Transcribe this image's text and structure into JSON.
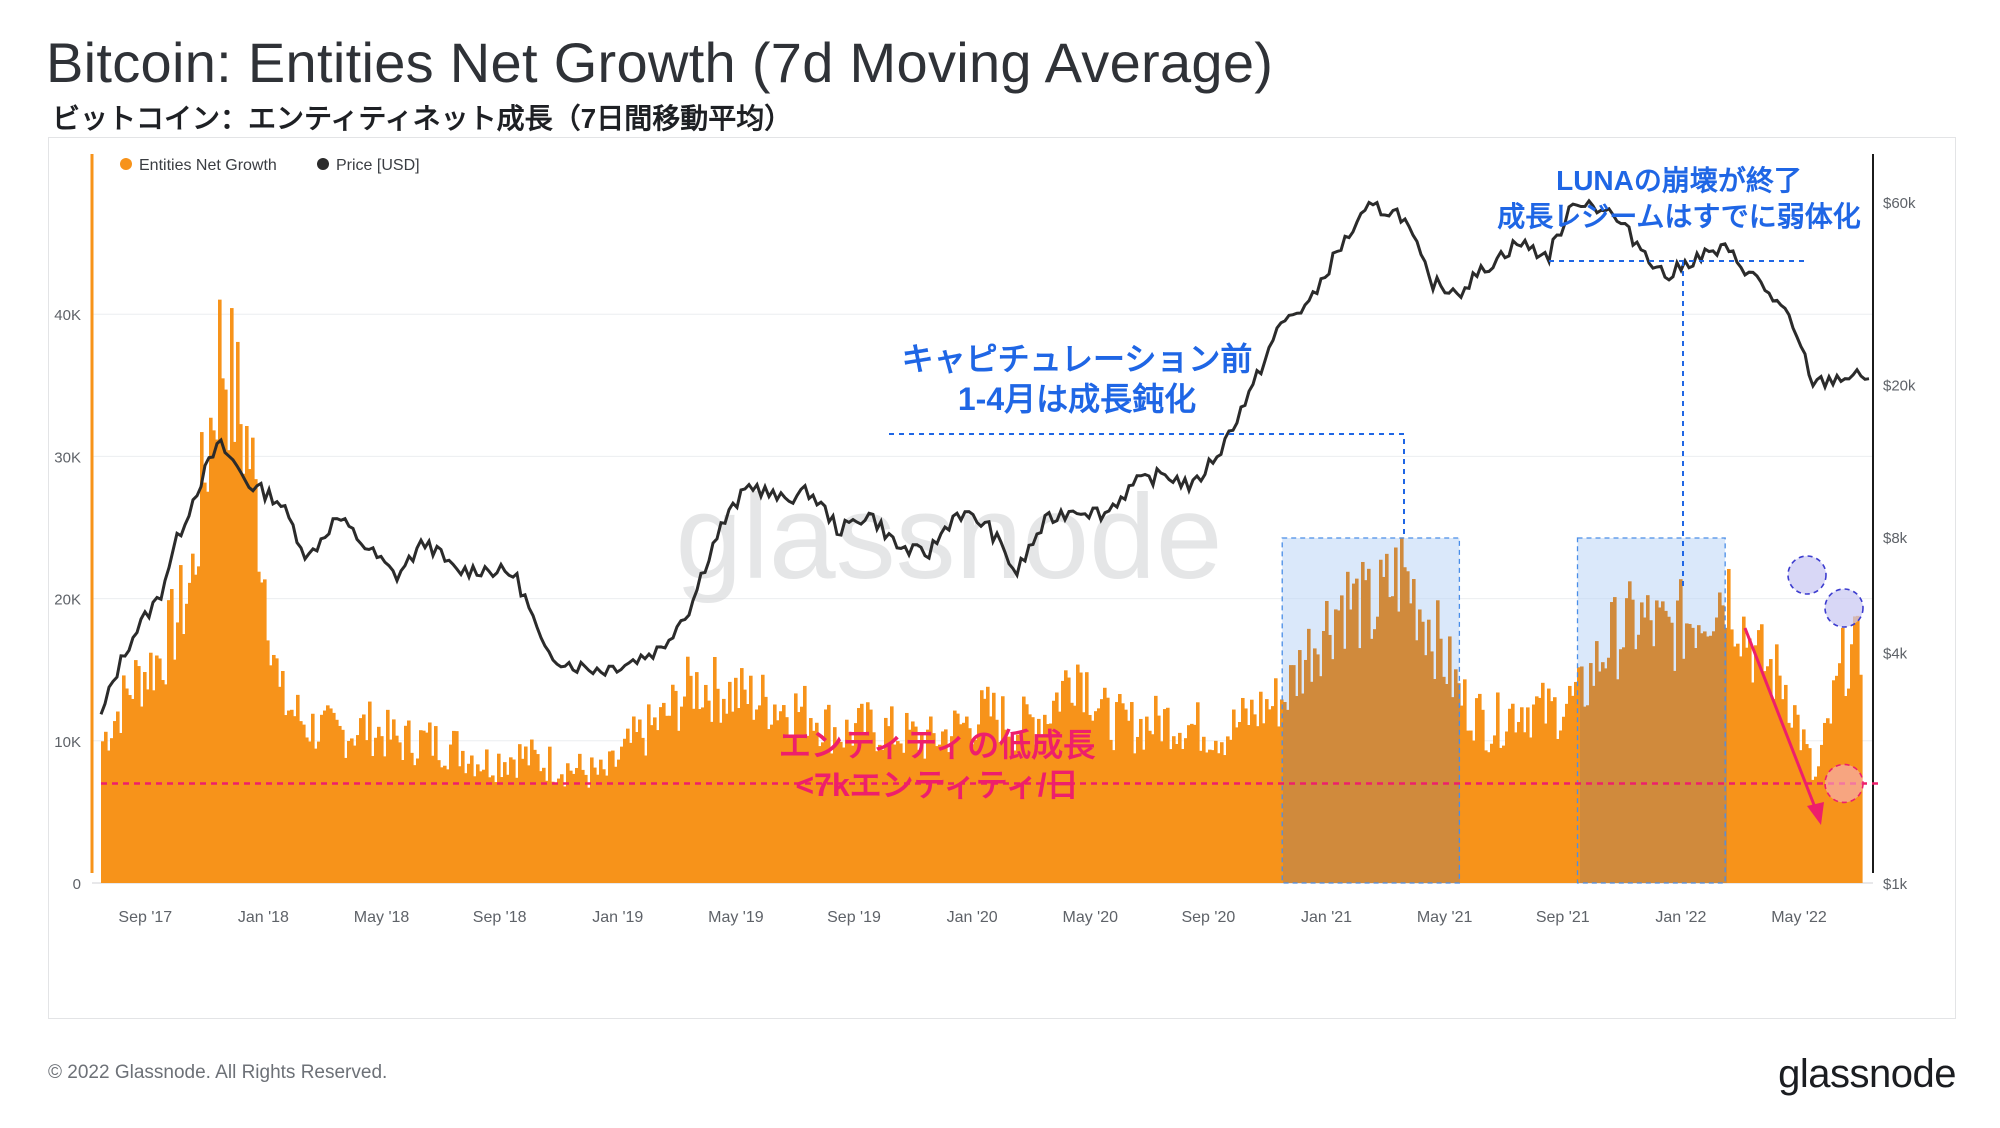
{
  "title": "Bitcoin: Entities Net Growth (7d Moving Average)",
  "subtitle": "ビットコイン：エンティティネット成長（7日間移動平均）",
  "footer": {
    "copyright": "© 2022 Glassnode. All Rights Reserved.",
    "logo": "glassnode"
  },
  "watermark": "glassnode",
  "colors": {
    "bars": "#f7931a",
    "price": "#2b2b2b",
    "annotation_blue": "#1f66e5",
    "annotation_pink": "#ee1f6b",
    "shade": "#bcd6f5"
  },
  "chart_data": {
    "type": "bar+line",
    "legend": [
      {
        "label": "Entities Net Growth",
        "color": "#f7931a"
      },
      {
        "label": "Price [USD]",
        "color": "#2b2b2b"
      }
    ],
    "x_labels": [
      "Sep '17",
      "Jan '18",
      "May '18",
      "Sep '18",
      "Jan '19",
      "May '19",
      "Sep '19",
      "Jan '20",
      "May '20",
      "Sep '20",
      "Jan '21",
      "May '21",
      "Sep '21",
      "Jan '22",
      "May '22"
    ],
    "y_left": {
      "ticks": [
        "0",
        "10K",
        "20K",
        "30K",
        "40K"
      ],
      "min": 0,
      "max": 50000
    },
    "y_right": {
      "ticks": [
        "$1k",
        "$4k",
        "$8k",
        "$20k",
        "$60k"
      ],
      "scale": "log"
    },
    "series": [
      {
        "name": "Entities Net Growth",
        "type": "bar",
        "dates": [
          "2017-08",
          "2017-09",
          "2017-10",
          "2017-11",
          "2017-12",
          "2018-01",
          "2018-02",
          "2018-03",
          "2018-04",
          "2018-05",
          "2018-06",
          "2018-07",
          "2018-08",
          "2018-09",
          "2018-10",
          "2018-11",
          "2018-12",
          "2019-01",
          "2019-02",
          "2019-03",
          "2019-04",
          "2019-05",
          "2019-06",
          "2019-07",
          "2019-08",
          "2019-09",
          "2019-10",
          "2019-11",
          "2019-12",
          "2020-01",
          "2020-02",
          "2020-03",
          "2020-04",
          "2020-05",
          "2020-06",
          "2020-07",
          "2020-08",
          "2020-09",
          "2020-10",
          "2020-11",
          "2020-12",
          "2021-01",
          "2021-02",
          "2021-03",
          "2021-04",
          "2021-05",
          "2021-06",
          "2021-07",
          "2021-08",
          "2021-09",
          "2021-10",
          "2021-11",
          "2021-12",
          "2022-01",
          "2022-02",
          "2022-03",
          "2022-04",
          "2022-05",
          "2022-06",
          "2022-07"
        ],
        "values": [
          10000,
          14000,
          16000,
          21000,
          38000,
          30000,
          13000,
          11000,
          10500,
          11000,
          10000,
          10000,
          9500,
          8500,
          9000,
          8500,
          8000,
          7500,
          10000,
          11500,
          14000,
          13500,
          13000,
          12500,
          12000,
          10500,
          11000,
          10500,
          10000,
          11000,
          12000,
          11000,
          12000,
          15500,
          11500,
          11000,
          11500,
          11000,
          10500,
          12000,
          13000,
          17000,
          20000,
          19000,
          22000,
          18000,
          13000,
          11000,
          12500,
          12000,
          13000,
          17000,
          18500,
          17500,
          19000,
          21000,
          16000,
          14000,
          7000,
          16000
        ]
      },
      {
        "name": "Price [USD]",
        "type": "line",
        "dates": [
          "2017-08",
          "2017-09",
          "2017-10",
          "2017-11",
          "2017-12",
          "2018-01",
          "2018-02",
          "2018-03",
          "2018-04",
          "2018-05",
          "2018-06",
          "2018-07",
          "2018-08",
          "2018-09",
          "2018-10",
          "2018-11",
          "2018-12",
          "2019-01",
          "2019-02",
          "2019-03",
          "2019-04",
          "2019-05",
          "2019-06",
          "2019-07",
          "2019-08",
          "2019-09",
          "2019-10",
          "2019-11",
          "2019-12",
          "2020-01",
          "2020-02",
          "2020-03",
          "2020-04",
          "2020-05",
          "2020-06",
          "2020-07",
          "2020-08",
          "2020-09",
          "2020-10",
          "2020-11",
          "2020-12",
          "2021-01",
          "2021-02",
          "2021-03",
          "2021-04",
          "2021-05",
          "2021-06",
          "2021-07",
          "2021-08",
          "2021-09",
          "2021-10",
          "2021-11",
          "2021-12",
          "2022-01",
          "2022-02",
          "2022-03",
          "2022-04",
          "2022-05",
          "2022-06",
          "2022-07"
        ],
        "values": [
          2700,
          4300,
          5600,
          9500,
          14000,
          11000,
          10000,
          7000,
          9000,
          7500,
          6300,
          7800,
          6500,
          6600,
          6400,
          4000,
          3700,
          3600,
          3800,
          4100,
          5300,
          8500,
          11000,
          10000,
          10500,
          8300,
          9200,
          7500,
          7200,
          9300,
          8600,
          6400,
          8800,
          9500,
          9200,
          11000,
          11700,
          10800,
          13800,
          19500,
          29000,
          33000,
          46000,
          58000,
          56000,
          37000,
          35000,
          41000,
          47000,
          43000,
          61000,
          57000,
          47000,
          38000,
          43000,
          45000,
          38000,
          31000,
          20000,
          21000
        ]
      }
    ],
    "annotations": [
      {
        "id": "pre-capitulation",
        "text_lines": [
          "キャピチュレーション前",
          "1-4月は成長鈍化"
        ],
        "color": "#1f66e5"
      },
      {
        "id": "luna-collapse",
        "text_lines": [
          "LUNAの崩壊が終了",
          "成長レジームはすでに弱体化"
        ],
        "color": "#1f66e5"
      },
      {
        "id": "low-growth",
        "text_lines": [
          "エンティティの低成長",
          "<7kエンティティ/日"
        ],
        "color": "#ee1f6b",
        "threshold": 7000
      }
    ],
    "shaded_regions": [
      {
        "from": "2020-12",
        "to": "2021-06"
      },
      {
        "from": "2021-10",
        "to": "2022-03"
      }
    ]
  }
}
